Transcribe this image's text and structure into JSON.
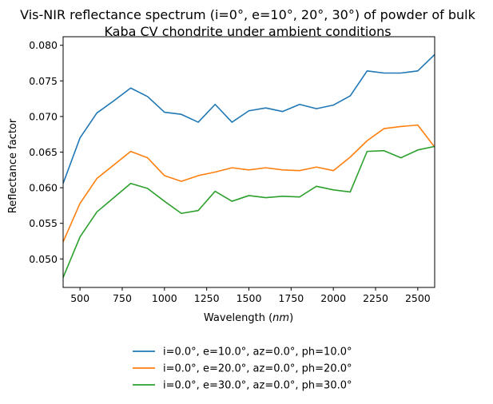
{
  "chart_data": {
    "type": "line",
    "title_line1": "Vis-NIR reflectance spectrum (i=0°, e=10°, 20°, 30°) of powder of bulk",
    "title_line2": "Kaba CV chondrite under ambient conditions",
    "xlabel": "Wavelength (",
    "xlabel_unit": "nm",
    "xlabel_close": ")",
    "ylabel": "Reflectance factor",
    "xlim": [
      400,
      2600
    ],
    "ylim": [
      0.046,
      0.0812
    ],
    "xticks": [
      500,
      750,
      1000,
      1250,
      1500,
      1750,
      2000,
      2250,
      2500
    ],
    "xtick_labels": [
      "500",
      "750",
      "1000",
      "1250",
      "1500",
      "1750",
      "2000",
      "2250",
      "2500"
    ],
    "yticks": [
      0.05,
      0.055,
      0.06,
      0.065,
      0.07,
      0.075,
      0.08
    ],
    "ytick_labels": [
      "0.050",
      "0.055",
      "0.060",
      "0.065",
      "0.070",
      "0.075",
      "0.080"
    ],
    "grid": false,
    "legend_position": "bottom-center, below plot",
    "x": [
      400,
      500,
      600,
      700,
      800,
      900,
      1000,
      1100,
      1200,
      1300,
      1400,
      1500,
      1600,
      1700,
      1800,
      1900,
      2000,
      2100,
      2200,
      2300,
      2400,
      2500,
      2600
    ],
    "series": [
      {
        "name": "i=0.0°, e=10.0°, az=0.0°, ph=10.0°",
        "color": "#1f77b4",
        "values": [
          0.0606,
          0.067,
          0.0705,
          0.0722,
          0.074,
          0.0728,
          0.0706,
          0.0703,
          0.0692,
          0.0717,
          0.0692,
          0.0708,
          0.0712,
          0.0707,
          0.0717,
          0.0711,
          0.0716,
          0.0729,
          0.0764,
          0.0761,
          0.0761,
          0.0764,
          0.0787
        ]
      },
      {
        "name": "i=0.0°, e=20.0°, az=0.0°, ph=20.0°",
        "color": "#ff7f0e",
        "values": [
          0.0524,
          0.0578,
          0.0613,
          0.0632,
          0.0651,
          0.0642,
          0.0617,
          0.0609,
          0.0617,
          0.0622,
          0.0628,
          0.0625,
          0.0628,
          0.0625,
          0.0624,
          0.0629,
          0.0624,
          0.0643,
          0.0666,
          0.0683,
          0.0686,
          0.0688,
          0.0657
        ]
      },
      {
        "name": "i=0.0°, e=30.0°, az=0.0°, ph=30.0°",
        "color": "#2ca02c",
        "values": [
          0.0474,
          0.0531,
          0.0566,
          0.0586,
          0.0606,
          0.0599,
          0.0581,
          0.0564,
          0.0568,
          0.0595,
          0.0581,
          0.0589,
          0.0586,
          0.0588,
          0.0587,
          0.0602,
          0.0597,
          0.0594,
          0.0651,
          0.0652,
          0.0642,
          0.0653,
          0.0658
        ]
      }
    ]
  }
}
